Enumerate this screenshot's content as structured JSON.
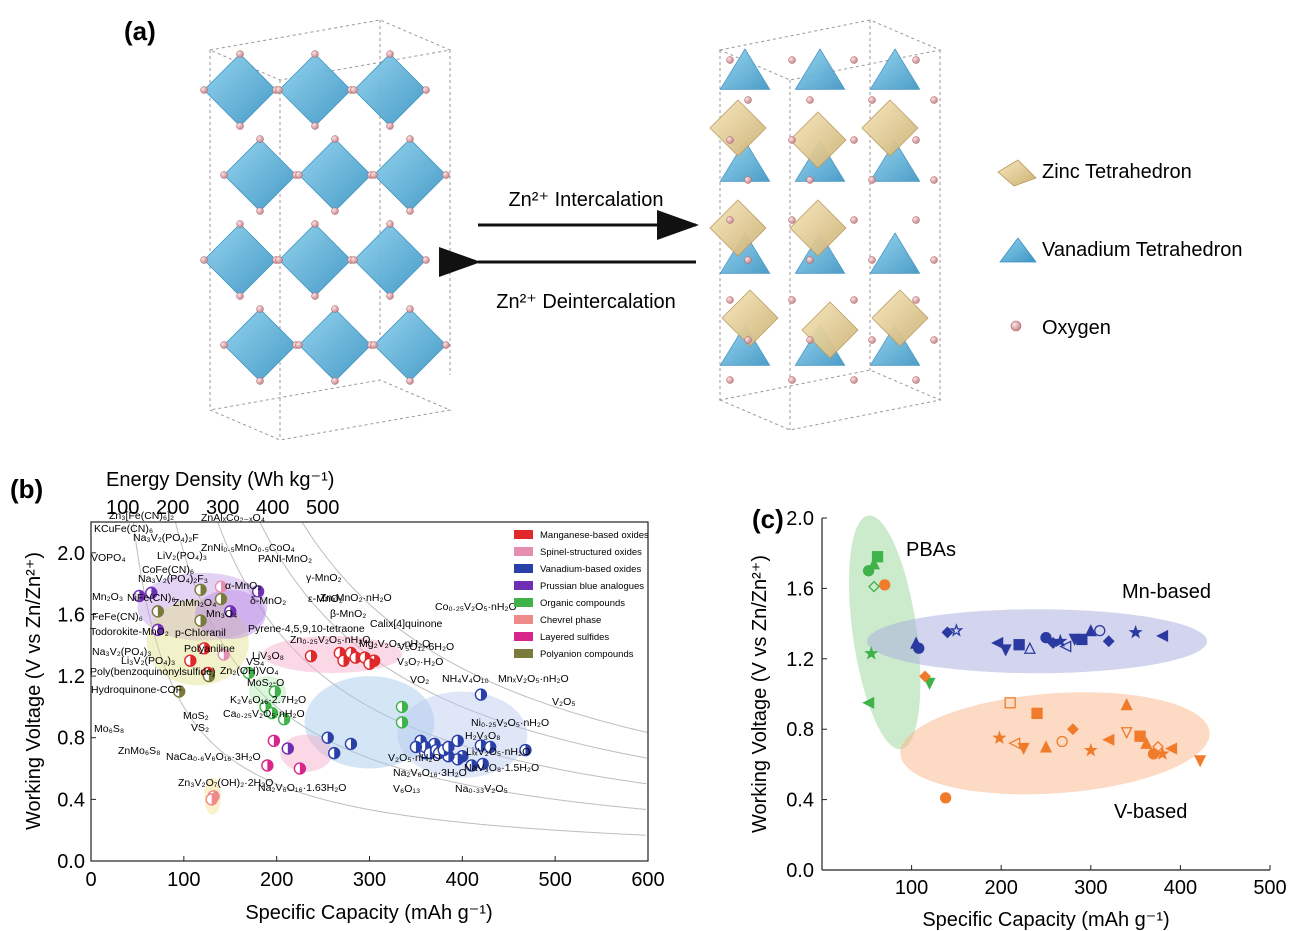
{
  "panel_a": {
    "label": "(a)",
    "arrow_forward": "Zn²⁺ Intercalation",
    "arrow_backward": "Zn²⁺ Deintercalation",
    "legend": [
      {
        "label": "Zinc Tetrahedron",
        "color": "#e8d49a"
      },
      {
        "label": "Vanadium Tetrahedron",
        "color": "#6bb8dc"
      },
      {
        "label": "Oxygen",
        "color": "#e4a9ae"
      }
    ]
  },
  "chart_data": [
    {
      "panel": "(b)",
      "type": "scatter",
      "xlabel": "Specific Capacity (mAh g⁻¹)",
      "ylabel": "Working Voltage (V vs Zn/Zn²⁺)",
      "top_axis_label": "Energy Density (Wh kg⁻¹)",
      "top_axis_ticks": [
        "100",
        "200",
        "300",
        "400",
        "500"
      ],
      "xlim": [
        0,
        600
      ],
      "ylim": [
        0.0,
        2.2
      ],
      "xticks": [
        0,
        100,
        200,
        300,
        400,
        500,
        600
      ],
      "yticks": [
        "0.0",
        "0.4",
        "0.8",
        "1.2",
        "1.6",
        "2.0"
      ],
      "legend_position": "top-right",
      "legend": [
        {
          "name": "Manganese-based oxides",
          "color": "#e0282b"
        },
        {
          "name": "Spinel-structured oxides",
          "color": "#e58fb0"
        },
        {
          "name": "Vanadium-based oxides",
          "color": "#2a40a8"
        },
        {
          "name": "Prussian blue analogues",
          "color": "#6f2fb5"
        },
        {
          "name": "Organic compounds",
          "color": "#3fb24a"
        },
        {
          "name": "Chevrel phase",
          "color": "#ef8a8a"
        },
        {
          "name": "Layered sulfides",
          "color": "#d8258a"
        },
        {
          "name": "Polyanion compounds",
          "color": "#7a7a3a"
        }
      ],
      "points": [
        {
          "label": "KCuFe(CN)₆",
          "x": 52,
          "y": 1.72,
          "color": "#6f2fb5"
        },
        {
          "label": "Zn₃[Fe(CN)₆]₂",
          "x": 65,
          "y": 1.74,
          "color": "#6f2fb5"
        },
        {
          "label": "Na₃V₂(PO₄)₂F₃",
          "x": 72,
          "y": 1.62,
          "color": "#7a7a3a"
        },
        {
          "label": "Na₃V₂(PO₄)₂F",
          "x": 118,
          "y": 1.76,
          "color": "#7a7a3a"
        },
        {
          "label": "ZnAlₓCo₂₋ₓO₄",
          "x": 140,
          "y": 1.78,
          "color": "#e58fb0"
        },
        {
          "label": "LiV₂(PO₄)₃",
          "x": 140,
          "y": 1.7,
          "color": "#7a7a3a"
        },
        {
          "label": "ZnNi₀.₅MnO₀.₅CoO₄",
          "x": 180,
          "y": 1.75,
          "color": "#6f2fb5"
        },
        {
          "label": "VOPO₄",
          "x": 118,
          "y": 1.56,
          "color": "#7a7a3a"
        },
        {
          "label": "CoFe(CN)₆",
          "x": 150,
          "y": 1.62,
          "color": "#6f2fb5"
        },
        {
          "label": "NiFe(CN)₆",
          "x": 72,
          "y": 1.5,
          "color": "#6f2fb5"
        },
        {
          "label": "Mn₂O₃",
          "x": 122,
          "y": 1.38,
          "color": "#e0282b"
        },
        {
          "label": "ZnMn₂O₄",
          "x": 143,
          "y": 1.34,
          "color": "#e58fb0"
        },
        {
          "label": "FeFe(CN)₆",
          "x": 107,
          "y": 1.3,
          "color": "#e0282b"
        },
        {
          "label": "Todorokite-MnO₂",
          "x": 126,
          "y": 1.22,
          "color": "#e0282b"
        },
        {
          "label": "Na₃V₂(PO₄)₃",
          "x": 95,
          "y": 1.1,
          "color": "#7a7a3a"
        },
        {
          "label": "Li₃V₂(PO₄)₃",
          "x": 127,
          "y": 1.2,
          "color": "#7a7a3a"
        },
        {
          "label": "p-Chloranil",
          "x": 170,
          "y": 1.22,
          "color": "#3fb24a"
        },
        {
          "label": "Polyaniline",
          "x": 198,
          "y": 1.1,
          "color": "#3fb24a"
        },
        {
          "label": "Poly(benzoquinonylsulfide)",
          "x": 188,
          "y": 1.0,
          "color": "#3fb24a"
        },
        {
          "label": "Hydroquinone-COF",
          "x": 195,
          "y": 0.96,
          "color": "#3fb24a"
        },
        {
          "label": "VS₄",
          "x": 208,
          "y": 0.92,
          "color": "#3fb24a"
        },
        {
          "label": "Zn₂(OH)VO₄",
          "x": 212,
          "y": 0.73,
          "color": "#6f2fb5"
        },
        {
          "label": "MoS₂",
          "x": 190,
          "y": 0.62,
          "color": "#d8258a"
        },
        {
          "label": "VS₂",
          "x": 197,
          "y": 0.78,
          "color": "#d8258a"
        },
        {
          "label": "Mo₆S₈",
          "x": 132,
          "y": 0.42,
          "color": "#ef8a8a"
        },
        {
          "label": "ZnMo₆S₈",
          "x": 130,
          "y": 0.4,
          "color": "#ef8a8a"
        },
        {
          "label": "MoS₂-O",
          "x": 225,
          "y": 0.6,
          "color": "#d8258a"
        },
        {
          "label": "Mn₃O₄",
          "x": 237,
          "y": 1.33,
          "color": "#e0282b"
        },
        {
          "label": "α-MnO₂",
          "x": 268,
          "y": 1.35,
          "color": "#e0282b"
        },
        {
          "label": "δ-MnO₂",
          "x": 272,
          "y": 1.3,
          "color": "#e0282b"
        },
        {
          "label": "PANI-MnO₂",
          "x": 280,
          "y": 1.35,
          "color": "#e0282b"
        },
        {
          "label": "γ-MnO₂",
          "x": 285,
          "y": 1.32,
          "color": "#e0282b"
        },
        {
          "label": "ε-MnO₂",
          "x": 295,
          "y": 1.32,
          "color": "#e0282b"
        },
        {
          "label": "ZnₓMnO₂·nH₂O",
          "x": 305,
          "y": 1.3,
          "color": "#e0282b"
        },
        {
          "label": "β-MnO₂",
          "x": 300,
          "y": 1.28,
          "color": "#e0282b"
        },
        {
          "label": "Pyrene-4,5,9,10-tetraone",
          "x": 335,
          "y": 1.0,
          "color": "#3fb24a"
        },
        {
          "label": "Calix[4]quinone",
          "x": 335,
          "y": 0.9,
          "color": "#3fb24a"
        },
        {
          "label": "Co₀.₂₅V₂O₅·nH₂O",
          "x": 420,
          "y": 1.08,
          "color": "#2a40a8"
        },
        {
          "label": "Zn₀.₂₅V₂O₅·nH₂O",
          "x": 255,
          "y": 0.8,
          "color": "#2a40a8"
        },
        {
          "label": "LiV₃O₈",
          "x": 262,
          "y": 0.7,
          "color": "#2a40a8"
        },
        {
          "label": "Mg₂V₂O₅·nH₂O",
          "x": 355,
          "y": 0.78,
          "color": "#2a40a8"
        },
        {
          "label": "V₅O₁₂·6H₂O",
          "x": 395,
          "y": 0.78,
          "color": "#2a40a8"
        },
        {
          "label": "V₃O₇·H₂O",
          "x": 370,
          "y": 0.76,
          "color": "#2a40a8"
        },
        {
          "label": "VO₂",
          "x": 360,
          "y": 0.7,
          "color": "#2a40a8"
        },
        {
          "label": "NH₄V₄O₁₀",
          "x": 420,
          "y": 0.75,
          "color": "#2a40a8"
        },
        {
          "label": "MnₓV₂O₅·nH₂O",
          "x": 430,
          "y": 0.74,
          "color": "#2a40a8"
        },
        {
          "label": "V₂O₅",
          "x": 468,
          "y": 0.72,
          "color": "#2a40a8"
        },
        {
          "label": "Ni₀.₂₅V₂O₅·nH₂O",
          "x": 422,
          "y": 0.63,
          "color": "#2a40a8"
        },
        {
          "label": "H₂V₃O₈",
          "x": 410,
          "y": 0.62,
          "color": "#2a40a8"
        },
        {
          "label": "LiₓV₂O₅·nH₂O",
          "x": 400,
          "y": 0.68,
          "color": "#2a40a8"
        },
        {
          "label": "NaV₃O₈·1.5H₂O",
          "x": 395,
          "y": 0.66,
          "color": "#2a40a8"
        },
        {
          "label": "Na₀.₃₃V₂O₅",
          "x": 385,
          "y": 0.68,
          "color": "#2a40a8"
        },
        {
          "label": "K₂V₆O₁₆·2.7H₂O",
          "x": 280,
          "y": 0.76,
          "color": "#2a40a8"
        },
        {
          "label": "Ca₀.₂₅V₂O₅·nH₂O",
          "x": 360,
          "y": 0.74,
          "color": "#2a40a8"
        },
        {
          "label": "NaCa₀.₆V₆O₁₆·3H₂O",
          "x": 365,
          "y": 0.7,
          "color": "#2a40a8"
        },
        {
          "label": "V₂O₅·nH₂O",
          "x": 372,
          "y": 0.72,
          "color": "#2a40a8"
        },
        {
          "label": "Na₂V₆O₁₆·3H₂O",
          "x": 375,
          "y": 0.7,
          "color": "#2a40a8"
        },
        {
          "label": "V₆O₁₃",
          "x": 380,
          "y": 0.72,
          "color": "#2a40a8"
        },
        {
          "label": "Na₂V₆O₁₆·1.63H₂O",
          "x": 385,
          "y": 0.74,
          "color": "#2a40a8"
        },
        {
          "label": "Zn₃V₂O₇(OH)₂·2H₂O",
          "x": 350,
          "y": 0.74,
          "color": "#2a40a8"
        }
      ],
      "plain_labels": [
        "KCuFe(CN)₆",
        "Zn₃[Fe(CN)₆]₂",
        "Na₃V₂(PO₄)₂F",
        "ZnAlₓCo₂₋ₓO₄",
        "LiV₂(PO₄)₃",
        "ZnNi₀.₅MnO₀.₅CoO₄",
        "VOPO₄",
        "CoFe(CN)₆",
        "Na₃V₂(PO₄)₂F₃",
        "Mn₂O₃",
        "NiFe(CN)₆",
        "ZnMn₂O₄",
        "FeFe(CN)₆",
        "Todorokite-MnO₂",
        "Na₃V₂(PO₄)₃",
        "Li₃V₂(PO₄)₃",
        "p-Chloranil",
        "Polyaniline",
        "Poly(benzoquinonylsulfide)",
        "Hydroquinone-COF",
        "Zn₂(OH)VO₄",
        "VS₄",
        "MoS₂",
        "VS₂",
        "Mo₆S₈",
        "ZnMo₆S₈",
        "MoS₂-O",
        "Mn₃O₄",
        "α-MnO₂",
        "PANI-MnO₂",
        "δ-MnO₂",
        "γ-MnO₂",
        "ε-MnO₂",
        "ZnₓMnO₂·nH₂O",
        "β-MnO₂",
        "Pyrene-4,5,9,10-tetraone",
        "Calix[4]quinone",
        "Co₀.₂₅V₂O₅·nH₂O",
        "Zn₀.₂₅V₂O₅·nH₂O",
        "LiV₃O₈",
        "Mg₂V₂O₅·nH₂O",
        "V₅O₁₂·6H₂O",
        "V₃O₇·H₂O",
        "VO₂",
        "NH₄V₄O₁₀",
        "MnₓV₂O₅·nH₂O",
        "V₂O₅",
        "Ni₀.₂₅V₂O₅·nH₂O",
        "H₂V₃O₈",
        "LiₓV₂O₅·nH₂O",
        "NaV₃O₈·1.5H₂O",
        "Na₀.₃₃V₂O₅",
        "K₂V₆O₁₆·2.7H₂O",
        "Ca₀.₂₅V₂O₅·nH₂O",
        "NaCa₀.₆V₆O₁₆·3H₂O",
        "V₂O₅·nH₂O",
        "Na₂V₆O₁₆·3H₂O",
        "V₆O₁₃",
        "Na₂V₆O₁₆·1.63H₂O",
        "Zn₃V₂O₇(OH)₂·2H₂O"
      ]
    },
    {
      "panel": "(c)",
      "type": "scatter",
      "xlabel": "Specific Capacity (mAh g⁻¹)",
      "ylabel": "Working Voltage (V vs Zn/Zn²⁺)",
      "xlim": [
        0,
        500
      ],
      "ylim": [
        0.0,
        2.0
      ],
      "xticks": [
        100,
        200,
        300,
        400,
        500
      ],
      "yticks": [
        "0.0",
        "0.4",
        "0.8",
        "1.2",
        "1.6",
        "2.0"
      ],
      "groups": [
        {
          "name": "PBAs",
          "color": "#3fb24a",
          "points": [
            [
              62,
              1.78
            ],
            [
              58,
              1.74
            ],
            [
              52,
              1.7
            ],
            [
              58,
              1.61
            ],
            [
              55,
              1.23
            ],
            [
              52,
              0.95
            ],
            [
              120,
              1.06
            ]
          ]
        },
        {
          "name": "Mn-based",
          "color": "#2a3aa0",
          "points": [
            [
              105,
              1.29
            ],
            [
              108,
              1.26
            ],
            [
              140,
              1.35
            ],
            [
              150,
              1.36
            ],
            [
              196,
              1.29
            ],
            [
              205,
              1.25
            ],
            [
              220,
              1.28
            ],
            [
              232,
              1.26
            ],
            [
              250,
              1.32
            ],
            [
              258,
              1.29
            ],
            [
              266,
              1.3
            ],
            [
              272,
              1.27
            ],
            [
              282,
              1.31
            ],
            [
              290,
              1.31
            ],
            [
              300,
              1.36
            ],
            [
              310,
              1.36
            ],
            [
              320,
              1.3
            ],
            [
              350,
              1.35
            ],
            [
              380,
              1.33
            ]
          ]
        },
        {
          "name": "V-based",
          "color": "#f07b2a",
          "points": [
            [
              70,
              1.62
            ],
            [
              115,
              1.1
            ],
            [
              198,
              0.75
            ],
            [
              215,
              0.72
            ],
            [
              225,
              0.69
            ],
            [
              240,
              0.89
            ],
            [
              250,
              0.7
            ],
            [
              268,
              0.73
            ],
            [
              280,
              0.8
            ],
            [
              300,
              0.68
            ],
            [
              320,
              0.74
            ],
            [
              340,
              0.78
            ],
            [
              355,
              0.76
            ],
            [
              362,
              0.72
            ],
            [
              370,
              0.66
            ],
            [
              375,
              0.7
            ],
            [
              380,
              0.66
            ],
            [
              390,
              0.69
            ],
            [
              422,
              0.62
            ],
            [
              210,
              0.95
            ],
            [
              340,
              0.94
            ],
            [
              138,
              0.41
            ]
          ]
        }
      ]
    }
  ]
}
